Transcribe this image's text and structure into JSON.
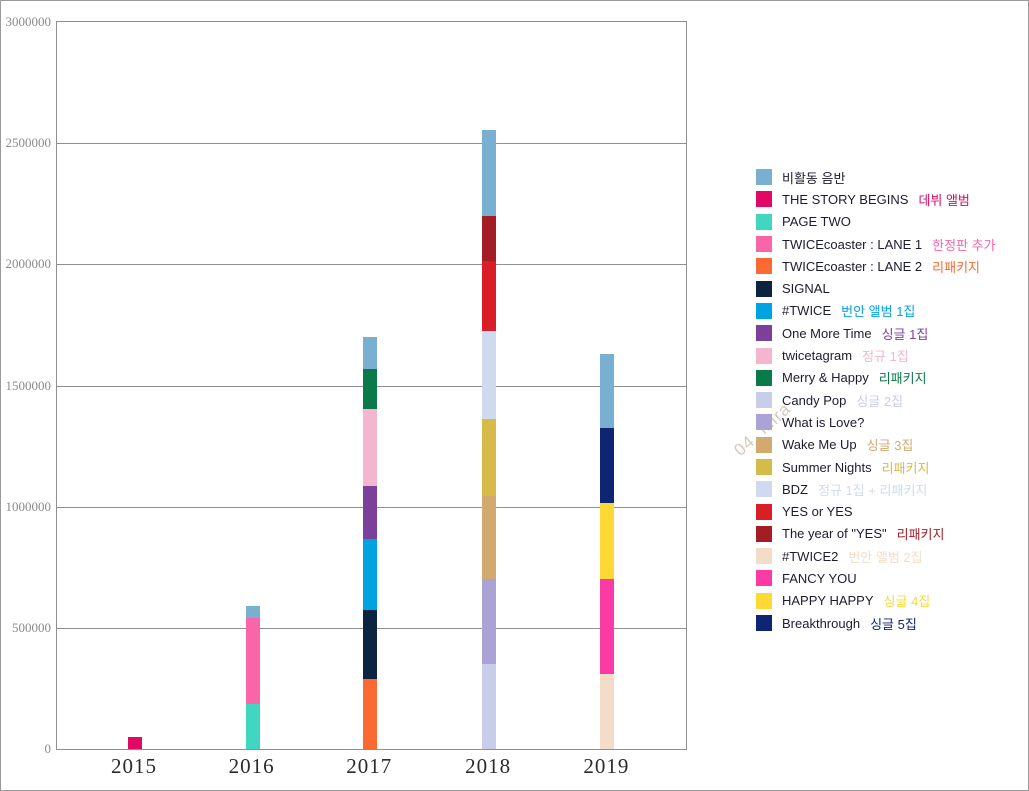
{
  "watermark": "04. Mira",
  "colors": {
    "background": "#ffffff",
    "frame_border": "#9a9a9a",
    "grid": "#8f8f8f",
    "y_tick_label": "#8a8a8a",
    "x_tick_label": "#2b2b2b",
    "legend_text": "#1c1c30"
  },
  "chart_data": {
    "type": "bar",
    "stacked": true,
    "grid": true,
    "legend_position": "right",
    "x_categories": [
      "2015",
      "2016",
      "2017",
      "2018",
      "2019"
    ],
    "y_axis": {
      "min": 0,
      "max": 3000000,
      "tick_interval": 500000,
      "tick_labels": [
        "0",
        "500000",
        "1000000",
        "1500000",
        "2000000",
        "2500000",
        "3000000"
      ]
    },
    "albums": [
      {
        "name": "비활동 음반",
        "suffix": "",
        "color": "#79b0d2"
      },
      {
        "name": "THE STORY BEGINS",
        "suffix": "데뷔 앨범",
        "color": "#e00a64"
      },
      {
        "name": "PAGE TWO",
        "suffix": "",
        "color": "#40d6c0"
      },
      {
        "name": "TWICEcoaster : LANE 1",
        "suffix": "한정판 추가",
        "color": "#f965a9"
      },
      {
        "name": "TWICEcoaster : LANE 2",
        "suffix": "리패키지",
        "color": "#fc6a33"
      },
      {
        "name": "SIGNAL",
        "suffix": "",
        "color": "#0d2440"
      },
      {
        "name": "#TWICE",
        "suffix": "번안 앨범 1집",
        "color": "#00a3e2"
      },
      {
        "name": "One More Time",
        "suffix": "싱글 1집",
        "color": "#7b3f9c"
      },
      {
        "name": "twicetagram",
        "suffix": "정규 1집",
        "color": "#f4b5cf"
      },
      {
        "name": "Merry & Happy",
        "suffix": "리패키지",
        "color": "#0b7a4b"
      },
      {
        "name": "Candy Pop",
        "suffix": "싱글 2집",
        "color": "#c8cdea"
      },
      {
        "name": "What is Love?",
        "suffix": "",
        "color": "#aba3d6"
      },
      {
        "name": "Wake Me Up",
        "suffix": "싱글 3집",
        "color": "#d2a96e"
      },
      {
        "name": "Summer Nights",
        "suffix": "리패키지",
        "color": "#d6ba4a"
      },
      {
        "name": "BDZ",
        "suffix": "정규 1집 + 리패키지",
        "color": "#cfdaee"
      },
      {
        "name": "YES or YES",
        "suffix": "",
        "color": "#da1e28"
      },
      {
        "name": "The year of \"YES\"",
        "suffix": "리패키지",
        "color": "#a21d24"
      },
      {
        "name": "#TWICE2",
        "suffix": "번안 앨범 2집",
        "color": "#f4ddc8"
      },
      {
        "name": "FANCY YOU",
        "suffix": "",
        "color": "#fb3ba5"
      },
      {
        "name": "HAPPY HAPPY",
        "suffix": "싱글 4집",
        "color": "#fed835"
      },
      {
        "name": "Breakthrough",
        "suffix": "싱글 5집",
        "color": "#0e2573"
      }
    ],
    "series_by_year": [
      {
        "year": "2015",
        "total": 50000,
        "segments": [
          {
            "album": "THE STORY BEGINS",
            "value": 50000
          }
        ]
      },
      {
        "year": "2016",
        "total": 590000,
        "segments": [
          {
            "album": "PAGE TWO",
            "value": 185000
          },
          {
            "album": "TWICEcoaster : LANE 1",
            "value": 355000
          },
          {
            "album": "비활동 음반",
            "value": 50000
          }
        ]
      },
      {
        "year": "2017",
        "total": 1700000,
        "segments": [
          {
            "album": "TWICEcoaster : LANE 2",
            "value": 290000
          },
          {
            "album": "SIGNAL",
            "value": 285000
          },
          {
            "album": "#TWICE",
            "value": 290000
          },
          {
            "album": "One More Time",
            "value": 220000
          },
          {
            "album": "twicetagram",
            "value": 320000
          },
          {
            "album": "Merry & Happy",
            "value": 165000
          },
          {
            "album": "비활동 음반",
            "value": 130000
          }
        ]
      },
      {
        "year": "2018",
        "total": 2555000,
        "segments": [
          {
            "album": "Candy Pop",
            "value": 350000
          },
          {
            "album": "What is Love?",
            "value": 350000
          },
          {
            "album": "Wake Me Up",
            "value": 345000
          },
          {
            "album": "Summer Nights",
            "value": 315000
          },
          {
            "album": "BDZ",
            "value": 365000
          },
          {
            "album": "YES or YES",
            "value": 290000
          },
          {
            "album": "The year of \"YES\"",
            "value": 185000
          },
          {
            "album": "비활동 음반",
            "value": 355000
          }
        ]
      },
      {
        "year": "2019",
        "total": 1630000,
        "segments": [
          {
            "album": "#TWICE2",
            "value": 310000
          },
          {
            "album": "FANCY YOU",
            "value": 390000
          },
          {
            "album": "HAPPY HAPPY",
            "value": 315000
          },
          {
            "album": "Breakthrough",
            "value": 310000
          },
          {
            "album": "비활동 음반",
            "value": 305000
          }
        ]
      }
    ]
  }
}
